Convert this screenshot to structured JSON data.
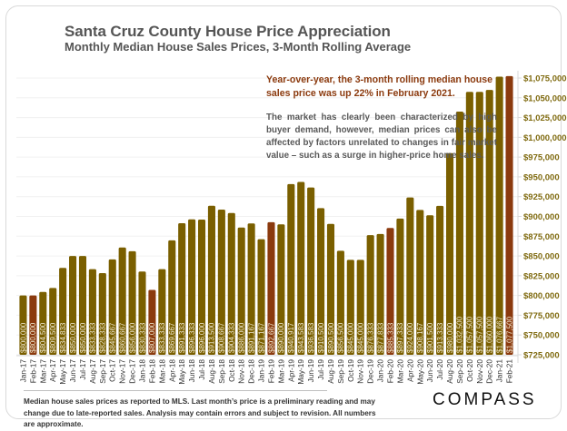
{
  "header": {
    "title": "Santa Cruz County House Price Appreciation",
    "subtitle": "Monthly Median House Sales Prices, 3-Month Rolling Average"
  },
  "annotation": {
    "headline": "Year-over-year, the 3-month rolling median house sales price was up 22% in February 2021.",
    "body": "The market has clearly been characterized by high buyer demand, however, median prices can also be affected by factors unrelated to changes in fair market value – such as a surge in higher-price home sales."
  },
  "footer": {
    "note": "Median house sales prices as reported to MLS. Last month’s price is a preliminary reading and may change due to late-reported sales. Analysis may contain errors and subject to revision. All numbers are approximate.",
    "logo": "COMPASS"
  },
  "colors": {
    "bar": "#7a5f00",
    "highlight_bar": "#8b3a0e",
    "axis_label": "#7f6a0f"
  },
  "chart_data": {
    "type": "bar",
    "title": "Santa Cruz County House Price Appreciation",
    "subtitle": "Monthly Median House Sales Prices, 3-Month Rolling Average",
    "xlabel": "",
    "ylabel": "",
    "ylim": [
      725000,
      1075000
    ],
    "y_axis_position": "right",
    "yticks": [
      725000,
      750000,
      775000,
      800000,
      825000,
      850000,
      875000,
      900000,
      925000,
      950000,
      975000,
      1000000,
      1025000,
      1050000,
      1075000
    ],
    "ytick_labels": [
      "$725,000",
      "$750,000",
      "$775,000",
      "$800,000",
      "$825,000",
      "$850,000",
      "$875,000",
      "$900,000",
      "$925,000",
      "$950,000",
      "$975,000",
      "$1,000,000",
      "$1,025,000",
      "$1,050,000",
      "$1,075,000"
    ],
    "grid": true,
    "legend": "none",
    "categories": [
      "Jan-17",
      "Feb-17",
      "Mar-17",
      "Apr-17",
      "May-17",
      "Jun-17",
      "Jul-17",
      "Aug-17",
      "Sep-17",
      "Oct-17",
      "Nov-17",
      "Dec-17",
      "Jan-18",
      "Feb-18",
      "Mar-18",
      "Apr-18",
      "May-18",
      "Jun-18",
      "Jul-18",
      "Aug-18",
      "Sep-18",
      "Oct-18",
      "Nov-18",
      "Dec-18",
      "Jan-19",
      "Feb-19",
      "Mar-19",
      "Apr-19",
      "May-19",
      "Jun-19",
      "Jul-19",
      "Aug-19",
      "Sep-19",
      "Oct-19",
      "Nov-19",
      "Dec-19",
      "Jan-20",
      "Feb-20",
      "Mar-20",
      "Apr-20",
      "May-20",
      "Jun-20",
      "Jul-20",
      "Aug-20",
      "Sep-20",
      "Oct-20",
      "Nov-20",
      "Dec-20",
      "Jan-21",
      "Feb-21"
    ],
    "values": [
      800000,
      800000,
      804500,
      809500,
      834833,
      850000,
      850000,
      833333,
      828333,
      845667,
      860667,
      856000,
      830333,
      807000,
      833333,
      869667,
      891333,
      896333,
      896000,
      913500,
      908667,
      904333,
      886000,
      891167,
      871167,
      892667,
      890000,
      940917,
      943583,
      936583,
      910500,
      890500,
      856500,
      845000,
      845000,
      876333,
      877833,
      885333,
      897333,
      924000,
      908167,
      901500,
      913333,
      980000,
      1032500,
      1057500,
      1057500,
      1060000,
      1076667,
      1077500
    ],
    "data_labels": [
      "$800,000",
      "$800,000",
      "$804,500",
      "$809,500",
      "$834,833",
      "$850,000",
      "$850,000",
      "$833,333",
      "$828,333",
      "$845,667",
      "$860,667",
      "$856,000",
      "$830,333",
      "$807,000",
      "$833,333",
      "$869,667",
      "$891,333",
      "$896,333",
      "$896,000",
      "$913,500",
      "$908,667",
      "$904,333",
      "$886,000",
      "$891,167",
      "$871,167",
      "$892,667",
      "$890,000",
      "$940,917",
      "$943,583",
      "$936,583",
      "$910,500",
      "$890,500",
      "$856,500",
      "$845,000",
      "$845,000",
      "$876,333",
      "$877,833",
      "$885,333",
      "$897,333",
      "$924,000",
      "$908,167",
      "$901,500",
      "$913,333",
      "$980,000",
      "$1,032,500",
      "$1,057,500",
      "$1,057,500",
      "$1,060,000",
      "$1,076,667",
      "$1,077,500"
    ],
    "highlighted": [
      "Feb-17",
      "Feb-18",
      "Feb-19",
      "Feb-20",
      "Feb-21"
    ]
  }
}
